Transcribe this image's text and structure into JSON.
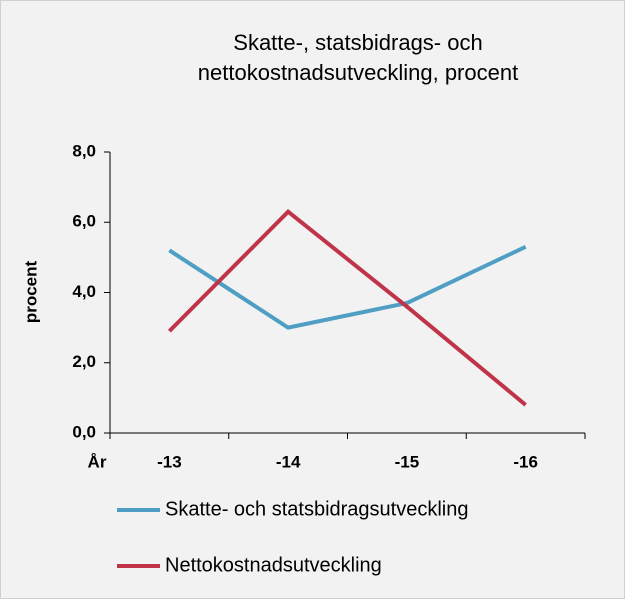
{
  "chart_data": {
    "type": "line",
    "title": [
      "Skatte-, statsbidrags- och",
      "nettokostnadsutveckling,  procent"
    ],
    "x_label": "År",
    "y_label": "procent",
    "categories": [
      "-13",
      "-14",
      "-15",
      "-16"
    ],
    "series": [
      {
        "name": "Skatte- och statsbidragsutveckling",
        "color": "#4f9ec4",
        "values": [
          5.2,
          3.0,
          3.7,
          5.3
        ]
      },
      {
        "name": "Nettokostnadsutveckling",
        "color": "#c0344a",
        "values": [
          2.9,
          6.3,
          3.6,
          0.8
        ]
      }
    ],
    "ylim": [
      0,
      8
    ],
    "yticks": [
      {
        "value": 0,
        "label": "0,0"
      },
      {
        "value": 2,
        "label": "2,0"
      },
      {
        "value": 4,
        "label": "4,0"
      },
      {
        "value": 6,
        "label": "6,0"
      },
      {
        "value": 8,
        "label": "8,0"
      }
    ],
    "grid": false,
    "legend": "bottom"
  }
}
